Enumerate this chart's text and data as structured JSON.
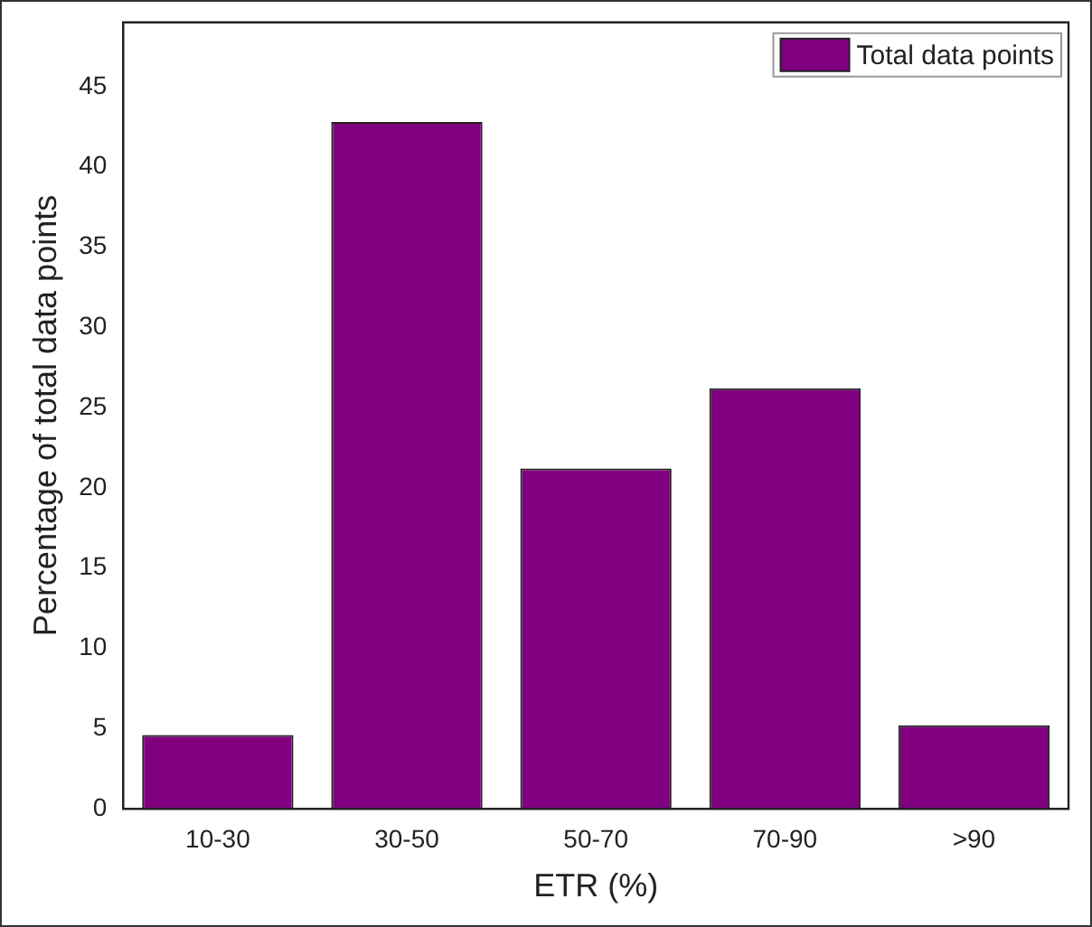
{
  "chart_data": {
    "type": "bar",
    "xlabel": "ETR (%)",
    "ylabel": "Percentage of total data points",
    "categories": [
      "10-30",
      "30-50",
      "50-70",
      "70-90",
      ">90"
    ],
    "series": [
      {
        "name": "Total data points",
        "color": "#800080",
        "values": [
          4.6,
          42.8,
          21.2,
          26.2,
          5.2
        ]
      }
    ],
    "ylim": [
      0,
      49
    ],
    "yticks": [
      0,
      5,
      10,
      15,
      20,
      25,
      30,
      35,
      40,
      45
    ],
    "grid": false,
    "legend": "top right"
  }
}
